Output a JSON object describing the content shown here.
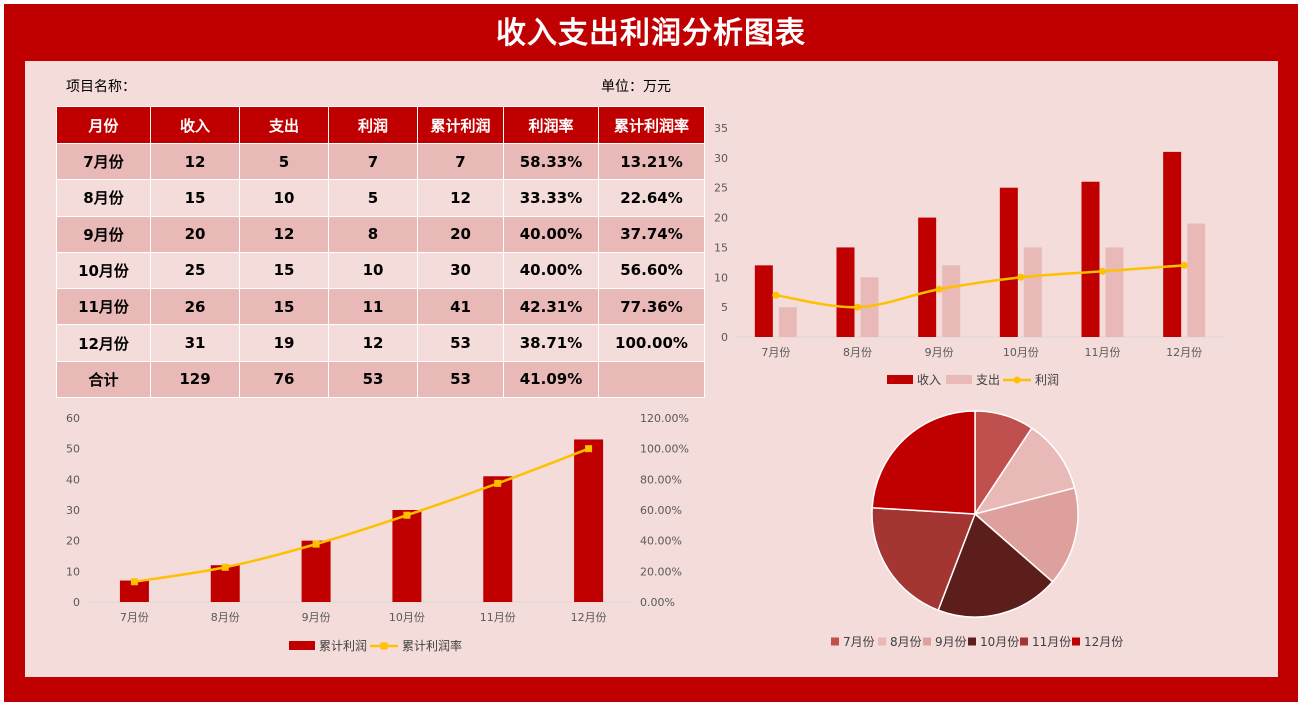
{
  "header": {
    "title": "收入支出利润分析图表"
  },
  "meta": {
    "project_label": "项目名称：",
    "unit_label": "单位：万元"
  },
  "table": {
    "columns": [
      "月份",
      "收入",
      "支出",
      "利润",
      "累计利润",
      "利润率",
      "累计利润率"
    ],
    "rows": [
      [
        "7月份",
        "12",
        "5",
        "7",
        "7",
        "58.33%",
        "13.21%"
      ],
      [
        "8月份",
        "15",
        "10",
        "5",
        "12",
        "33.33%",
        "22.64%"
      ],
      [
        "9月份",
        "20",
        "12",
        "8",
        "20",
        "40.00%",
        "37.74%"
      ],
      [
        "10月份",
        "25",
        "15",
        "10",
        "30",
        "40.00%",
        "56.60%"
      ],
      [
        "11月份",
        "26",
        "15",
        "11",
        "41",
        "42.31%",
        "77.36%"
      ],
      [
        "12月份",
        "31",
        "19",
        "12",
        "53",
        "38.71%",
        "100.00%"
      ],
      [
        "合计",
        "129",
        "76",
        "53",
        "53",
        "41.09%",
        ""
      ]
    ]
  },
  "colors": {
    "income": "#c00000",
    "expense": "#e8b9b7",
    "line": "#ffc000",
    "pie": [
      "#c0504d",
      "#e8b9b7",
      "#dea09c",
      "#5c1e1b",
      "#a33632",
      "#c00000"
    ]
  },
  "chart_data": [
    {
      "type": "bar",
      "categories": [
        "7月份",
        "8月份",
        "9月份",
        "10月份",
        "11月份",
        "12月份"
      ],
      "series": [
        {
          "name": "收入",
          "kind": "bar",
          "values": [
            12,
            15,
            20,
            25,
            26,
            31
          ]
        },
        {
          "name": "支出",
          "kind": "bar",
          "values": [
            5,
            10,
            12,
            15,
            15,
            19
          ]
        },
        {
          "name": "利润",
          "kind": "line",
          "values": [
            7,
            5,
            8,
            10,
            11,
            12
          ]
        }
      ],
      "ylim": [
        0,
        35
      ],
      "yticks": [
        0,
        5,
        10,
        15,
        20,
        25,
        30,
        35
      ],
      "legend": "bottom"
    },
    {
      "type": "bar",
      "categories": [
        "7月份",
        "8月份",
        "9月份",
        "10月份",
        "11月份",
        "12月份"
      ],
      "series": [
        {
          "name": "累计利润",
          "kind": "bar",
          "values": [
            7,
            12,
            20,
            30,
            41,
            53
          ]
        },
        {
          "name": "累计利润率",
          "kind": "line",
          "axis": "right",
          "values": [
            13.21,
            22.64,
            37.74,
            56.6,
            77.36,
            100.0
          ]
        }
      ],
      "ylim": [
        0,
        60
      ],
      "yticks": [
        0,
        10,
        20,
        30,
        40,
        50,
        60
      ],
      "y2lim": [
        0,
        120
      ],
      "y2ticks": [
        "0.00%",
        "20.00%",
        "40.00%",
        "60.00%",
        "80.00%",
        "100.00%",
        "120.00%"
      ],
      "legend": "bottom"
    },
    {
      "type": "pie",
      "categories": [
        "7月份",
        "8月份",
        "9月份",
        "10月份",
        "11月份",
        "12月份"
      ],
      "values": [
        12,
        15,
        20,
        25,
        26,
        31
      ],
      "legend": "bottom"
    }
  ]
}
